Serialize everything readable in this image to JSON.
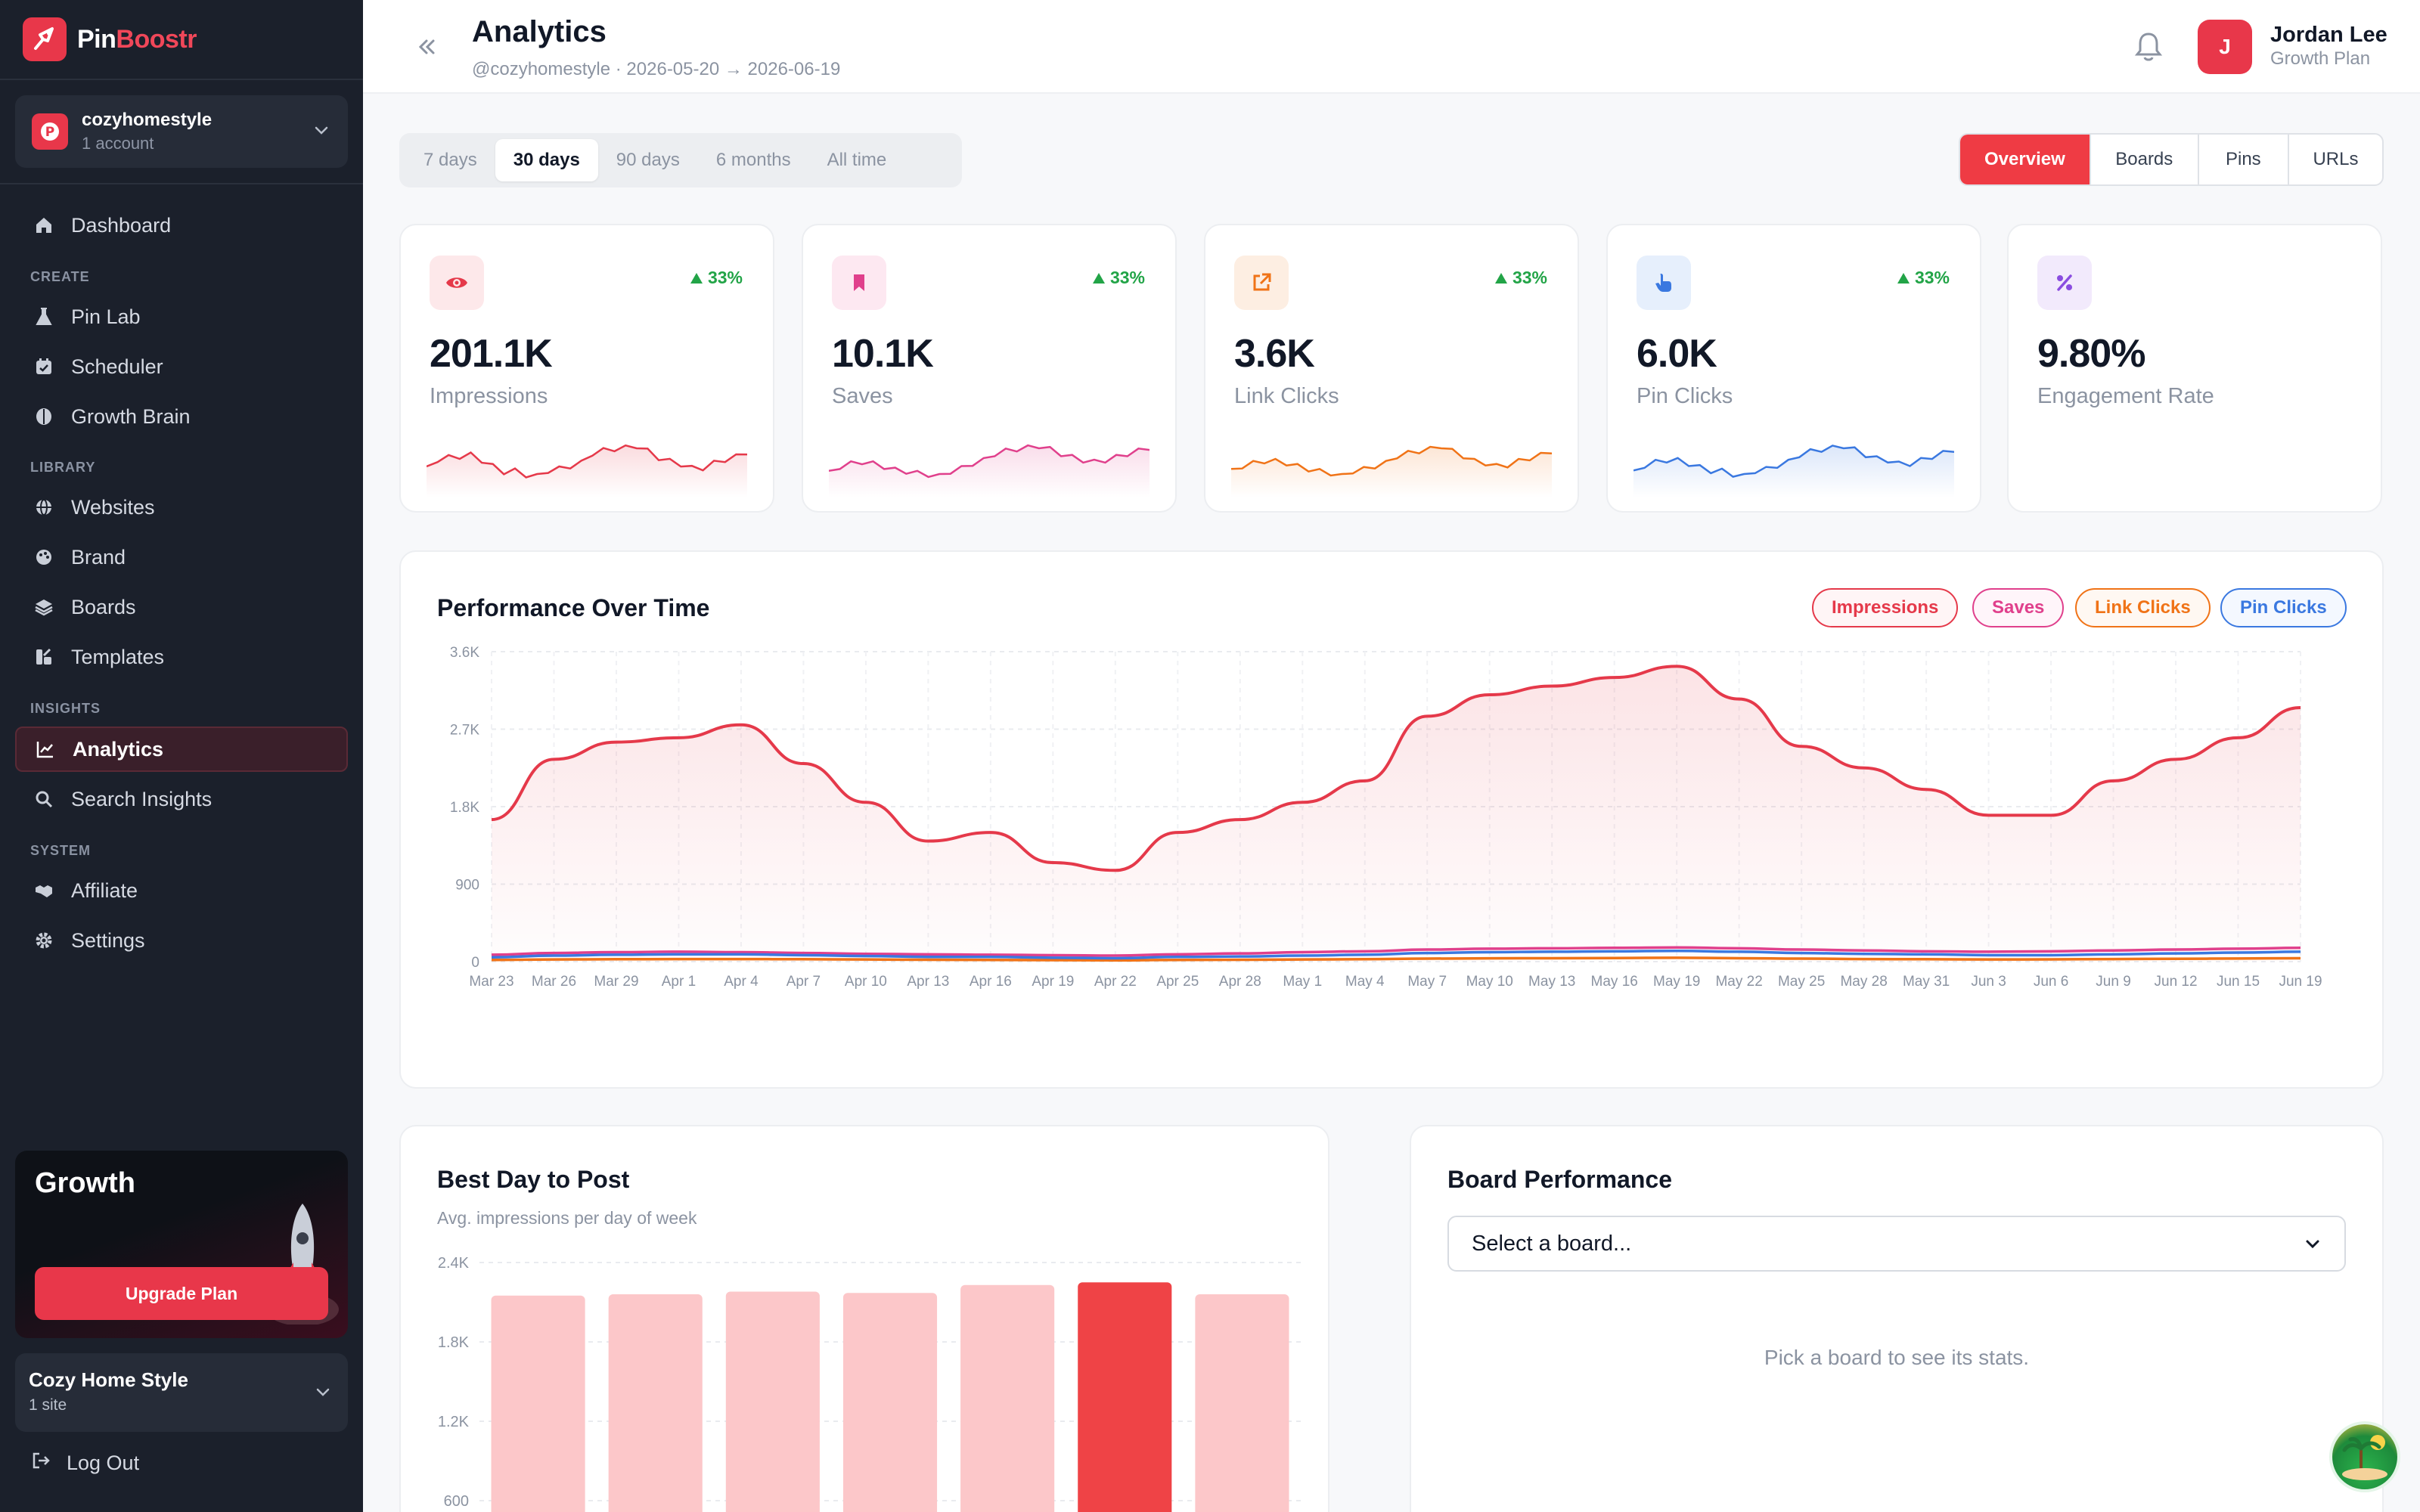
{
  "brand": {
    "name_part1": "Pin",
    "name_part2": "Boostr"
  },
  "account": {
    "name": "cozyhomestyle",
    "sub": "1 account"
  },
  "nav": {
    "dashboard": "Dashboard",
    "sections": {
      "create": "CREATE",
      "library": "LIBRARY",
      "insights": "INSIGHTS",
      "system": "SYSTEM"
    },
    "pin_lab": "Pin Lab",
    "scheduler": "Scheduler",
    "growth_brain": "Growth Brain",
    "websites": "Websites",
    "brand": "Brand",
    "boards": "Boards",
    "templates": "Templates",
    "analytics": "Analytics",
    "search_insights": "Search Insights",
    "affiliate": "Affiliate",
    "settings": "Settings"
  },
  "growth": {
    "title": "Growth",
    "button": "Upgrade Plan"
  },
  "site": {
    "name": "Cozy Home Style",
    "sub": "1 site"
  },
  "logout": "Log Out",
  "header": {
    "title": "Analytics",
    "subtitle": "@cozyhomestyle · 2026-05-20 → 2026-06-19"
  },
  "user": {
    "initial": "J",
    "name": "Jordan Lee",
    "plan": "Growth Plan"
  },
  "range_tabs": [
    "7 days",
    "30 days",
    "90 days",
    "6 months",
    "All time"
  ],
  "range_selected": "30 days",
  "view_tabs": [
    "Overview",
    "Boards",
    "Pins",
    "URLs"
  ],
  "view_selected": "Overview",
  "stats": [
    {
      "value": "201.1K",
      "label": "Impressions",
      "delta": "33%",
      "color": "#e5394a",
      "icon": "eye-icon"
    },
    {
      "value": "10.1K",
      "label": "Saves",
      "delta": "33%",
      "color": "#e0408c",
      "icon": "bookmark-icon"
    },
    {
      "value": "3.6K",
      "label": "Link Clicks",
      "delta": "33%",
      "color": "#f07317",
      "icon": "external-link-icon"
    },
    {
      "value": "6.0K",
      "label": "Pin Clicks",
      "delta": "33%",
      "color": "#3a78e0",
      "icon": "pointer-icon"
    },
    {
      "value": "9.80%",
      "label": "Engagement Rate",
      "delta": "",
      "color": "#8a4de0",
      "icon": "percent-icon"
    }
  ],
  "performance": {
    "title": "Performance Over Time",
    "legend": [
      "Impressions",
      "Saves",
      "Link Clicks",
      "Pin Clicks"
    ]
  },
  "best_day": {
    "title": "Best Day to Post",
    "subtitle": "Avg. impressions per day of week"
  },
  "board_perf": {
    "title": "Board Performance",
    "select_placeholder": "Select a board...",
    "empty": "Pick a board to see its stats."
  },
  "chart_data": [
    {
      "type": "line",
      "title": "Performance Over Time",
      "x": [
        "Mar 23",
        "Mar 26",
        "Mar 29",
        "Apr 1",
        "Apr 4",
        "Apr 7",
        "Apr 10",
        "Apr 13",
        "Apr 16",
        "Apr 19",
        "Apr 22",
        "Apr 25",
        "Apr 28",
        "May 1",
        "May 4",
        "May 7",
        "May 10",
        "May 13",
        "May 16",
        "May 19",
        "May 22",
        "May 25",
        "May 28",
        "May 31",
        "Jun 3",
        "Jun 6",
        "Jun 9",
        "Jun 12",
        "Jun 15",
        "Jun 19"
      ],
      "ylim": [
        0,
        3600
      ],
      "yticks": [
        0,
        900,
        1800,
        2700,
        3600
      ],
      "ytick_labels": [
        "0",
        "900",
        "1.8K",
        "2.7K",
        "3.6K"
      ],
      "series": [
        {
          "name": "Impressions",
          "color": "#e5394a",
          "values": [
            1650,
            2350,
            2550,
            2600,
            2750,
            2300,
            1850,
            1400,
            1500,
            1150,
            1060,
            1500,
            1650,
            1850,
            2100,
            2850,
            3100,
            3200,
            3300,
            3430,
            3050,
            2500,
            2250,
            2000,
            1700,
            1700,
            2100,
            2350,
            2600,
            2950
          ]
        },
        {
          "name": "Saves",
          "color": "#e0408c",
          "values": [
            80,
            100,
            110,
            115,
            110,
            100,
            90,
            85,
            80,
            75,
            70,
            85,
            95,
            110,
            120,
            140,
            150,
            155,
            160,
            165,
            155,
            140,
            130,
            120,
            115,
            120,
            130,
            140,
            150,
            160
          ]
        },
        {
          "name": "Link Clicks",
          "color": "#f07317",
          "values": [
            20,
            25,
            28,
            30,
            30,
            28,
            25,
            22,
            20,
            18,
            15,
            20,
            22,
            25,
            28,
            35,
            38,
            40,
            42,
            45,
            40,
            35,
            30,
            28,
            25,
            26,
            30,
            33,
            36,
            40
          ]
        },
        {
          "name": "Pin Clicks",
          "color": "#3a78e0",
          "values": [
            50,
            70,
            80,
            85,
            85,
            75,
            65,
            55,
            55,
            45,
            40,
            55,
            60,
            70,
            80,
            100,
            110,
            115,
            120,
            125,
            115,
            100,
            90,
            85,
            75,
            75,
            85,
            95,
            105,
            115
          ]
        }
      ],
      "grid": true
    },
    {
      "type": "bar",
      "title": "Best Day to Post",
      "ylim": [
        0,
        2400
      ],
      "yticks": [
        600,
        1200,
        1800,
        2400
      ],
      "ytick_labels": [
        "600",
        "1.2K",
        "1.8K",
        "2.4K"
      ],
      "values": [
        2150,
        2160,
        2180,
        2170,
        2230,
        2250,
        2160
      ],
      "highlight_index": 5,
      "bar_color": "#fcc7c9",
      "highlight_color": "#ef4346"
    }
  ]
}
